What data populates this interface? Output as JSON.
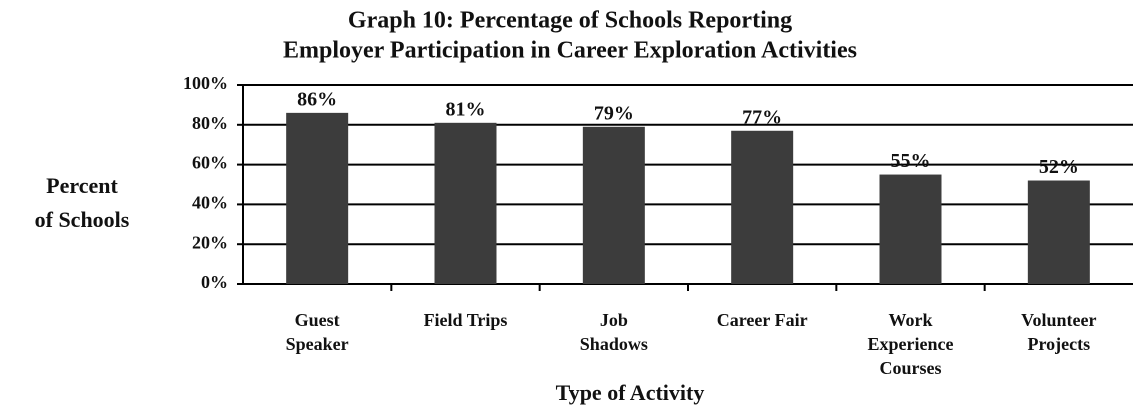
{
  "chart_data": {
    "type": "bar",
    "title": [
      "Graph 10: Percentage of Schools Reporting",
      "Employer Participation in Career Exploration Activities"
    ],
    "ylabel": [
      "Percent",
      "of Schools"
    ],
    "xlabel": "Type of Activity",
    "categories": [
      "Guest Speaker",
      "Field Trips",
      "Job Shadows",
      "Career Fair",
      "Work Experience Courses",
      "Volunteer Projects"
    ],
    "values": [
      86,
      81,
      79,
      77,
      55,
      52
    ],
    "value_labels": [
      "86%",
      "81%",
      "79%",
      "77%",
      "55%",
      "52%"
    ],
    "color": "#3c3c3c",
    "ylim": [
      0,
      100
    ],
    "yticks": [
      {
        "value": 0,
        "label": "0%"
      },
      {
        "value": 20,
        "label": "20%"
      },
      {
        "value": 40,
        "label": "40%"
      },
      {
        "value": 60,
        "label": "60%"
      },
      {
        "value": 80,
        "label": "80%"
      },
      {
        "value": 100,
        "label": "100%"
      }
    ],
    "grid": true
  }
}
